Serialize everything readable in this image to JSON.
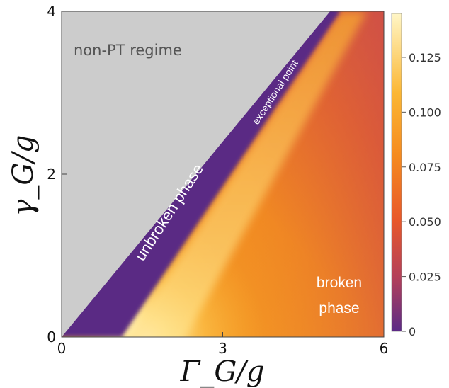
{
  "chart_data": {
    "type": "heatmap",
    "xlabel": "Γ_G/g",
    "ylabel": "γ_G/g",
    "xlim": [
      0,
      6
    ],
    "ylim": [
      0,
      4
    ],
    "x_ticks": [
      "0",
      "3",
      "6"
    ],
    "y_ticks": [
      "0",
      "2",
      "4"
    ],
    "colorbar": {
      "range": [
        0,
        0.145
      ],
      "ticks": [
        "0",
        "0.025",
        "0.050",
        "0.075",
        "0.100",
        "0.125"
      ],
      "tick_values": [
        0,
        0.025,
        0.05,
        0.075,
        0.1,
        0.125
      ],
      "colors": [
        "#5b2a86",
        "#b3405a",
        "#e8582a",
        "#f58a1f",
        "#fbb735",
        "#fff6c6"
      ]
    },
    "regions": [
      {
        "name": "non-PT regime",
        "label": "non-PT regime",
        "color": "#cccccc"
      },
      {
        "name": "unbroken phase",
        "label": "unbroken phase",
        "color": "#5a2a84"
      },
      {
        "name": "broken phase",
        "label_lines": [
          "broken",
          "phase"
        ]
      }
    ],
    "boundaries": {
      "non_pt_line": {
        "x": [
          0,
          6
        ],
        "y": [
          0,
          4.8
        ],
        "description_points": [
          [
            0,
            0
          ],
          [
            4.97,
            4
          ]
        ]
      },
      "exceptional_line": {
        "x": [
          1.12,
          6
        ],
        "y": [
          0,
          4.8
        ]
      }
    },
    "annotations": [
      {
        "text": "exceptional point"
      }
    ]
  }
}
